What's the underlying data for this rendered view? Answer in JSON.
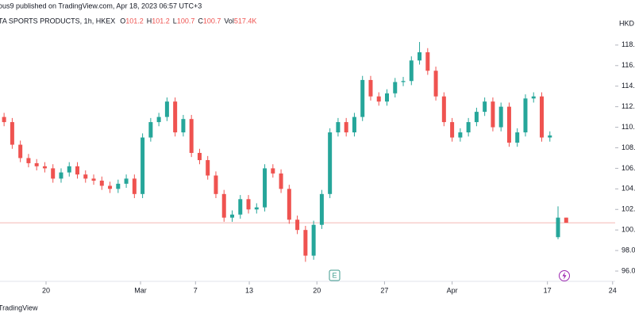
{
  "header": {
    "publisher": "ous9 published on TradingView.com, Apr 18, 2023 06:57 UTC+3",
    "symbol": "TA SPORTS PRODUCTS, 1h, HKEX",
    "legend": [
      {
        "label": "O",
        "value": 101.2
      },
      {
        "label": "H",
        "value": 101.2
      },
      {
        "label": "L",
        "value": 100.7
      },
      {
        "label": "C",
        "value": 100.7
      },
      {
        "label": "Vol",
        "value": 517400,
        "value_label": "517.4K"
      }
    ],
    "currency": "HKD"
  },
  "footer": {
    "brand": "TradingView"
  },
  "events": [
    "E"
  ],
  "chart_data": {
    "type": "candlestick",
    "up_color": "#26a69a",
    "down_color": "#ef5350",
    "price_line": 100.7,
    "price_line_color": "#f4b6b4",
    "xlim": [
      -0.5,
      75.5
    ],
    "xticks": [
      {
        "value": 5.15,
        "label": "20"
      },
      {
        "value": 16.75,
        "label": "Mar"
      },
      {
        "value": 23.5,
        "label": "7"
      },
      {
        "value": 30.1,
        "label": "13"
      },
      {
        "value": 38.4,
        "label": "20"
      },
      {
        "value": 46.7,
        "label": "27"
      },
      {
        "value": 55.0,
        "label": "Apr"
      },
      {
        "value": 66.7,
        "label": "17"
      },
      {
        "value": 74.7,
        "label": "24"
      }
    ],
    "ylim": [
      95.0,
      119.3
    ],
    "yticks": [
      {
        "value": 96,
        "label": "96.0"
      },
      {
        "value": 98,
        "label": "98.0"
      },
      {
        "value": 100,
        "label": "100.0"
      },
      {
        "value": 102,
        "label": "102.0"
      },
      {
        "value": 104,
        "label": "104.0"
      },
      {
        "value": 106,
        "label": "106.0"
      },
      {
        "value": 108,
        "label": "108.0"
      },
      {
        "value": 110,
        "label": "110.0"
      },
      {
        "value": 112,
        "label": "112.0"
      },
      {
        "value": 114,
        "label": "114.0"
      },
      {
        "value": 116,
        "label": "116.0"
      },
      {
        "value": 118,
        "label": "118.0"
      }
    ],
    "open": [
      111,
      110.5,
      108.3,
      107,
      106.5,
      106.2,
      106,
      105,
      105.6,
      106.2,
      105.4,
      105,
      104.8,
      104.3,
      104,
      104.5,
      105,
      103.5,
      109,
      110.5,
      111,
      112.5,
      109.5,
      110.8,
      107.5,
      106.8,
      105.3,
      103.5,
      101.2,
      101.5,
      103,
      102,
      102.2,
      106,
      105.5,
      104,
      101,
      100,
      97.5,
      100.5,
      103.5,
      109.5,
      110.5,
      109.5,
      111,
      114.6,
      113,
      112.5,
      113.3,
      114.4,
      114.5,
      116.5,
      117.3,
      115.5,
      113,
      110.5,
      109,
      109.5,
      110.5,
      111.5,
      112.5,
      110,
      112,
      108.5,
      109.5,
      112.8,
      113,
      109,
      99.3,
      101.2
    ],
    "high": [
      111.4,
      110.9,
      108.7,
      107.4,
      106.9,
      106.6,
      106.4,
      106,
      106.6,
      106.6,
      105.8,
      105.4,
      105.2,
      104.7,
      104.9,
      105.4,
      105.4,
      109.4,
      110.9,
      111.4,
      112.9,
      112.9,
      111.2,
      111.2,
      107.9,
      107.2,
      105.7,
      103.9,
      101.9,
      103.4,
      103.4,
      102.6,
      106.4,
      106.4,
      105.9,
      104.4,
      101.4,
      100.4,
      100.9,
      103.9,
      109.9,
      110.9,
      110.9,
      111.4,
      115,
      115,
      113.4,
      113.7,
      114.8,
      114.9,
      116.9,
      118.3,
      117.7,
      115.9,
      113.4,
      110.9,
      109.9,
      110.9,
      111.9,
      112.9,
      112.9,
      112.4,
      112.4,
      109.9,
      113.2,
      113.4,
      113.4,
      109.6,
      102.3,
      101.2
    ],
    "low": [
      110.1,
      107.9,
      106.6,
      106.1,
      105.8,
      105.6,
      104.6,
      104.6,
      105.2,
      105,
      104.6,
      104.4,
      103.9,
      103.6,
      103.6,
      104.1,
      103.1,
      103.1,
      108.6,
      110.1,
      110.6,
      109.1,
      109.1,
      107.1,
      106.4,
      104.9,
      103.1,
      100.8,
      100.8,
      101.1,
      101.6,
      101.6,
      101.8,
      105.1,
      103.6,
      100.6,
      99.6,
      96.9,
      97.1,
      100.1,
      103.1,
      109.1,
      109.1,
      109.1,
      110.6,
      112.6,
      112.1,
      112.1,
      112.9,
      114,
      114.1,
      116.1,
      115.1,
      112.6,
      110.1,
      108.6,
      108.6,
      109.1,
      110.1,
      111.1,
      109.6,
      109.6,
      108.1,
      108.1,
      109.1,
      112.4,
      108.6,
      108.6,
      99.1,
      100.7
    ],
    "close": [
      110.5,
      108.3,
      107,
      106.5,
      106.2,
      106,
      105,
      105.6,
      106.2,
      105.4,
      105,
      104.8,
      104.3,
      104,
      104.5,
      105,
      103.5,
      109,
      110.5,
      111,
      112.5,
      109.5,
      110.8,
      107.5,
      106.8,
      105.3,
      103.5,
      101.2,
      101.5,
      103,
      102,
      102.2,
      106,
      105.5,
      104,
      101,
      100,
      97.5,
      100.5,
      103.5,
      109.5,
      110.5,
      109.5,
      111,
      114.6,
      113,
      112.5,
      113.3,
      114.4,
      114.5,
      116.5,
      117.3,
      115.5,
      113,
      110.5,
      109,
      109.5,
      110.5,
      111.5,
      112.5,
      110,
      112,
      108.5,
      109.5,
      112.8,
      113,
      109,
      109.2,
      101.2,
      100.7
    ]
  }
}
